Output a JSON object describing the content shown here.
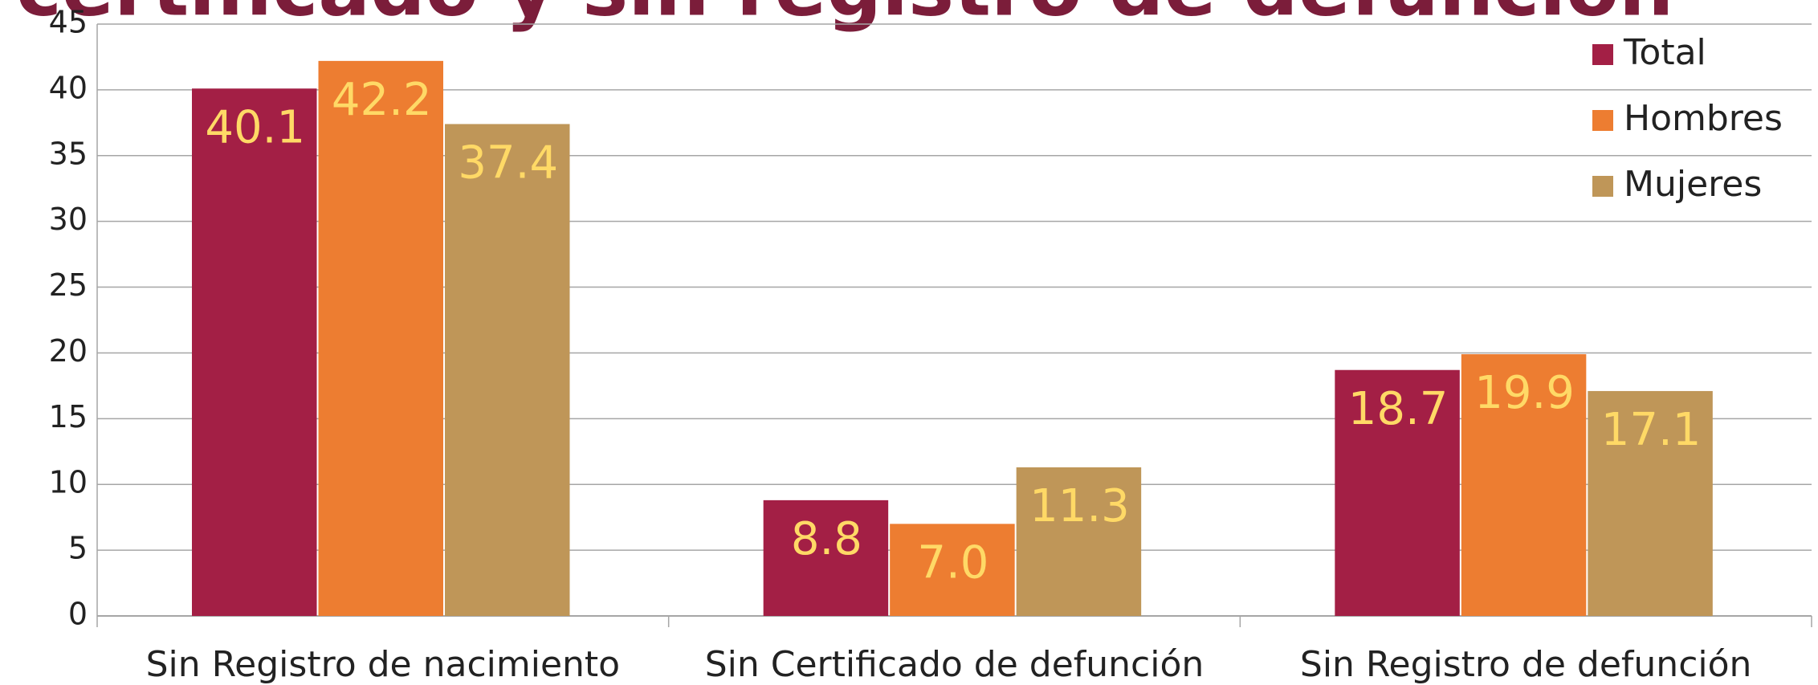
{
  "chart_data": {
    "type": "bar",
    "title": "certificado y sin registro de defunción",
    "categories": [
      "Sin Registro de nacimiento",
      "Sin Certificado de defunción",
      "Sin Registro de defunción"
    ],
    "series": [
      {
        "name": "Total",
        "color": "#a31f45",
        "values": [
          40.1,
          8.8,
          18.7
        ]
      },
      {
        "name": "Hombres",
        "color": "#ed7d31",
        "values": [
          42.2,
          7.0,
          19.9
        ],
        "value_labels": [
          "42.2",
          "7.0",
          "19.9"
        ]
      },
      {
        "name": "Mujeres",
        "color": "#bf9658",
        "values": [
          37.4,
          11.3,
          17.1
        ]
      }
    ],
    "ylim": [
      0,
      45
    ],
    "yticks": [
      0,
      5,
      10,
      15,
      20,
      25,
      30,
      35,
      40,
      45
    ],
    "grid": true,
    "legend": "top-right"
  }
}
